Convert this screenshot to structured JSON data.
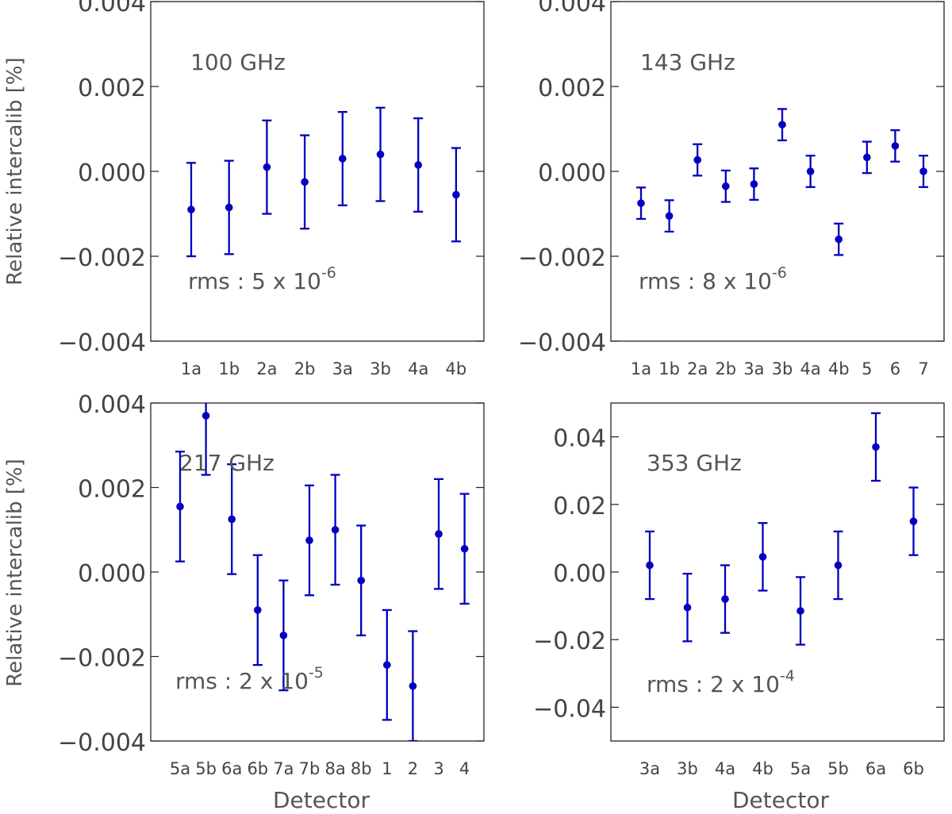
{
  "figure": {
    "ylabel": "Relative intercalib  [%]",
    "xlabel": "Detector"
  },
  "chart_data": [
    {
      "type": "scatter",
      "title": "100 GHz",
      "rms_label": "rms : 5 x 10",
      "rms_exponent": "-6",
      "xlabel": "",
      "ylabel": "Relative intercalib  [%]",
      "ylim": [
        -0.004,
        0.004
      ],
      "yticks": [
        -0.004,
        -0.002,
        0.0,
        0.002,
        0.004
      ],
      "ytick_labels": [
        "−0.004",
        "−0.002",
        "0.000",
        "0.002",
        "0.004"
      ],
      "categories": [
        "1a",
        "1b",
        "2a",
        "2b",
        "3a",
        "3b",
        "4a",
        "4b"
      ],
      "values": [
        -0.0009,
        -0.00085,
        0.0001,
        -0.00025,
        0.0003,
        0.0004,
        0.00015,
        -0.00055
      ],
      "errors": [
        0.0011,
        0.0011,
        0.0011,
        0.0011,
        0.0011,
        0.0011,
        0.0011,
        0.0011
      ],
      "color": "#0000c0"
    },
    {
      "type": "scatter",
      "title": "143 GHz",
      "rms_label": "rms : 8 x 10",
      "rms_exponent": "-6",
      "xlabel": "",
      "ylabel": "",
      "ylim": [
        -0.004,
        0.004
      ],
      "yticks": [
        -0.004,
        -0.002,
        0.0,
        0.002,
        0.004
      ],
      "ytick_labels": [
        "−0.004",
        "−0.002",
        "0.000",
        "0.002",
        "0.004"
      ],
      "categories": [
        "1a",
        "1b",
        "2a",
        "2b",
        "3a",
        "3b",
        "4a",
        "4b",
        "5",
        "6",
        "7"
      ],
      "values": [
        -0.00075,
        -0.00105,
        0.00027,
        -0.00035,
        -0.0003,
        0.0011,
        0.0,
        -0.0016,
        0.00033,
        0.0006,
        0.0
      ],
      "errors": [
        0.00037,
        0.00037,
        0.00037,
        0.00037,
        0.00037,
        0.00037,
        0.00037,
        0.00037,
        0.00037,
        0.00037,
        0.00037
      ],
      "color": "#0000c0"
    },
    {
      "type": "scatter",
      "title": "217 GHz",
      "rms_label": "rms : 2 x 10",
      "rms_exponent": "-5",
      "xlabel": "Detector",
      "ylabel": "Relative intercalib  [%]",
      "ylim": [
        -0.004,
        0.004
      ],
      "yticks": [
        -0.004,
        -0.002,
        0.0,
        0.002,
        0.004
      ],
      "ytick_labels": [
        "−0.004",
        "−0.002",
        "0.000",
        "0.002",
        "0.004"
      ],
      "categories": [
        "5a",
        "5b",
        "6a",
        "6b",
        "7a",
        "7b",
        "8a",
        "8b",
        "1",
        "2",
        "3",
        "4"
      ],
      "values": [
        0.00155,
        0.0037,
        0.00125,
        -0.0009,
        -0.0015,
        0.00075,
        0.001,
        -0.0002,
        -0.0022,
        -0.0027,
        0.0009,
        0.00055
      ],
      "errors": [
        0.0013,
        0.0014,
        0.0013,
        0.0013,
        0.0013,
        0.0013,
        0.0013,
        0.0013,
        0.0013,
        0.0013,
        0.0013,
        0.0013
      ],
      "color": "#0000c0"
    },
    {
      "type": "scatter",
      "title": "353 GHz",
      "rms_label": "rms : 2 x 10",
      "rms_exponent": "-4",
      "xlabel": "Detector",
      "ylabel": "",
      "ylim": [
        -0.05,
        0.05
      ],
      "yticks": [
        -0.04,
        -0.02,
        0.0,
        0.02,
        0.04
      ],
      "ytick_labels": [
        "−0.04",
        "−0.02",
        "0.00",
        "0.02",
        "0.04"
      ],
      "categories": [
        "3a",
        "3b",
        "4a",
        "4b",
        "5a",
        "5b",
        "6a",
        "6b"
      ],
      "values": [
        0.002,
        -0.0105,
        -0.008,
        0.0045,
        -0.0115,
        0.002,
        0.037,
        0.015
      ],
      "errors": [
        0.01,
        0.01,
        0.01,
        0.01,
        0.01,
        0.01,
        0.01,
        0.01
      ],
      "color": "#0000c0"
    }
  ]
}
